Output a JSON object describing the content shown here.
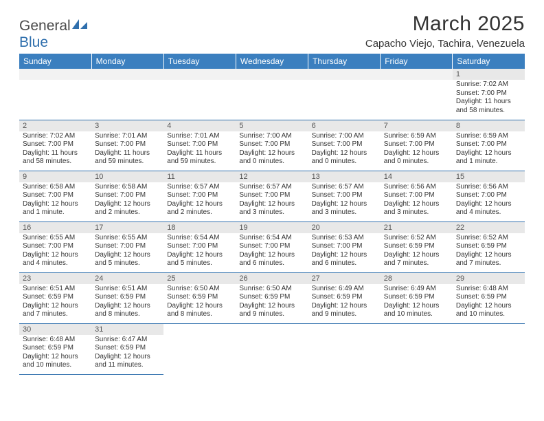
{
  "logo": {
    "textLeft": "General",
    "textRight": "Blue"
  },
  "title": "March 2025",
  "location": "Capacho Viejo, Tachira, Venezuela",
  "colors": {
    "headerBg": "#3b7fbf",
    "headerText": "#ffffff",
    "dayNumBg": "#e8e8e8",
    "border": "#2f6fad",
    "logoBlue": "#2f6fad",
    "bodyText": "#333333"
  },
  "weekdays": [
    "Sunday",
    "Monday",
    "Tuesday",
    "Wednesday",
    "Thursday",
    "Friday",
    "Saturday"
  ],
  "layout": {
    "firstDayOffset": 6,
    "daysInMonth": 31
  },
  "days": {
    "1": {
      "sunrise": "7:02 AM",
      "sunset": "7:00 PM",
      "daylight": "11 hours and 58 minutes."
    },
    "2": {
      "sunrise": "7:02 AM",
      "sunset": "7:00 PM",
      "daylight": "11 hours and 58 minutes."
    },
    "3": {
      "sunrise": "7:01 AM",
      "sunset": "7:00 PM",
      "daylight": "11 hours and 59 minutes."
    },
    "4": {
      "sunrise": "7:01 AM",
      "sunset": "7:00 PM",
      "daylight": "11 hours and 59 minutes."
    },
    "5": {
      "sunrise": "7:00 AM",
      "sunset": "7:00 PM",
      "daylight": "12 hours and 0 minutes."
    },
    "6": {
      "sunrise": "7:00 AM",
      "sunset": "7:00 PM",
      "daylight": "12 hours and 0 minutes."
    },
    "7": {
      "sunrise": "6:59 AM",
      "sunset": "7:00 PM",
      "daylight": "12 hours and 0 minutes."
    },
    "8": {
      "sunrise": "6:59 AM",
      "sunset": "7:00 PM",
      "daylight": "12 hours and 1 minute."
    },
    "9": {
      "sunrise": "6:58 AM",
      "sunset": "7:00 PM",
      "daylight": "12 hours and 1 minute."
    },
    "10": {
      "sunrise": "6:58 AM",
      "sunset": "7:00 PM",
      "daylight": "12 hours and 2 minutes."
    },
    "11": {
      "sunrise": "6:57 AM",
      "sunset": "7:00 PM",
      "daylight": "12 hours and 2 minutes."
    },
    "12": {
      "sunrise": "6:57 AM",
      "sunset": "7:00 PM",
      "daylight": "12 hours and 3 minutes."
    },
    "13": {
      "sunrise": "6:57 AM",
      "sunset": "7:00 PM",
      "daylight": "12 hours and 3 minutes."
    },
    "14": {
      "sunrise": "6:56 AM",
      "sunset": "7:00 PM",
      "daylight": "12 hours and 3 minutes."
    },
    "15": {
      "sunrise": "6:56 AM",
      "sunset": "7:00 PM",
      "daylight": "12 hours and 4 minutes."
    },
    "16": {
      "sunrise": "6:55 AM",
      "sunset": "7:00 PM",
      "daylight": "12 hours and 4 minutes."
    },
    "17": {
      "sunrise": "6:55 AM",
      "sunset": "7:00 PM",
      "daylight": "12 hours and 5 minutes."
    },
    "18": {
      "sunrise": "6:54 AM",
      "sunset": "7:00 PM",
      "daylight": "12 hours and 5 minutes."
    },
    "19": {
      "sunrise": "6:54 AM",
      "sunset": "7:00 PM",
      "daylight": "12 hours and 6 minutes."
    },
    "20": {
      "sunrise": "6:53 AM",
      "sunset": "7:00 PM",
      "daylight": "12 hours and 6 minutes."
    },
    "21": {
      "sunrise": "6:52 AM",
      "sunset": "6:59 PM",
      "daylight": "12 hours and 7 minutes."
    },
    "22": {
      "sunrise": "6:52 AM",
      "sunset": "6:59 PM",
      "daylight": "12 hours and 7 minutes."
    },
    "23": {
      "sunrise": "6:51 AM",
      "sunset": "6:59 PM",
      "daylight": "12 hours and 7 minutes."
    },
    "24": {
      "sunrise": "6:51 AM",
      "sunset": "6:59 PM",
      "daylight": "12 hours and 8 minutes."
    },
    "25": {
      "sunrise": "6:50 AM",
      "sunset": "6:59 PM",
      "daylight": "12 hours and 8 minutes."
    },
    "26": {
      "sunrise": "6:50 AM",
      "sunset": "6:59 PM",
      "daylight": "12 hours and 9 minutes."
    },
    "27": {
      "sunrise": "6:49 AM",
      "sunset": "6:59 PM",
      "daylight": "12 hours and 9 minutes."
    },
    "28": {
      "sunrise": "6:49 AM",
      "sunset": "6:59 PM",
      "daylight": "12 hours and 10 minutes."
    },
    "29": {
      "sunrise": "6:48 AM",
      "sunset": "6:59 PM",
      "daylight": "12 hours and 10 minutes."
    },
    "30": {
      "sunrise": "6:48 AM",
      "sunset": "6:59 PM",
      "daylight": "12 hours and 10 minutes."
    },
    "31": {
      "sunrise": "6:47 AM",
      "sunset": "6:59 PM",
      "daylight": "12 hours and 11 minutes."
    }
  },
  "labels": {
    "sunrise": "Sunrise:",
    "sunset": "Sunset:",
    "daylight": "Daylight:"
  }
}
